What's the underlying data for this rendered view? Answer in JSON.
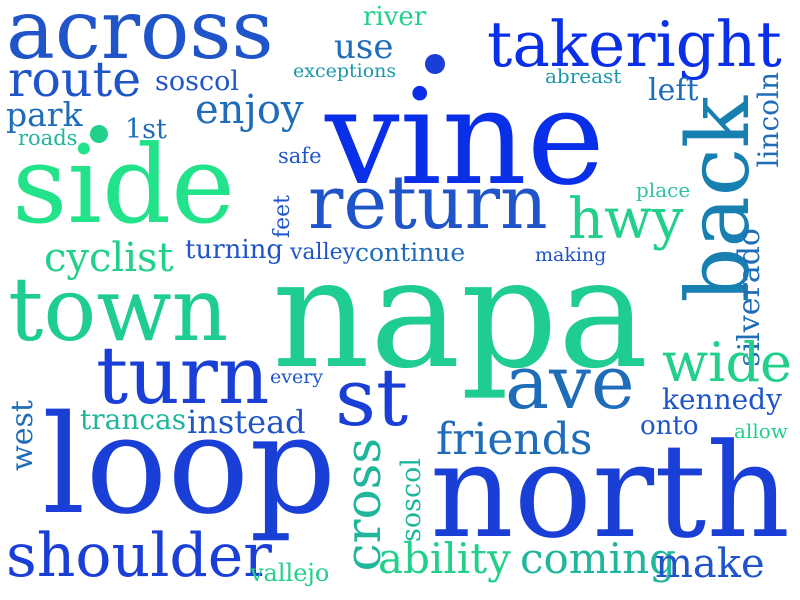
{
  "palette": {
    "royal_blue": "#1a3fd6",
    "bright_blue": "#0a2fe8",
    "medium_blue": "#1f55c9",
    "steel_blue": "#1f6cb8",
    "teal_blue": "#1780b0",
    "teal": "#1a98a8",
    "sea_green": "#1fb69c",
    "mint": "#1fcc92",
    "spring_green": "#22e38a",
    "aqua": "#2ec3a5"
  },
  "words": [
    {
      "key": "across",
      "text": "across",
      "color": "#1f55c9"
    },
    {
      "key": "takeright",
      "text": "takeright",
      "color": "#0a2fe8"
    },
    {
      "key": "river",
      "text": "river",
      "color": "#22d08c"
    },
    {
      "key": "use",
      "text": "use",
      "color": "#1f6cb8"
    },
    {
      "key": "exceptions",
      "text": "exceptions",
      "color": "#1a98a8"
    },
    {
      "key": "route",
      "text": "route",
      "color": "#1f55c9"
    },
    {
      "key": "soscol-top",
      "text": "soscol",
      "color": "#1f55c9"
    },
    {
      "key": "abreast",
      "text": "abreast",
      "color": "#1a98a8"
    },
    {
      "key": "vine",
      "text": "vine",
      "color": "#0a2fe8"
    },
    {
      "key": "park",
      "text": "park",
      "color": "#1f6cb8"
    },
    {
      "key": "enjoy",
      "text": "enjoy",
      "color": "#1f6cb8"
    },
    {
      "key": "left",
      "text": "left",
      "color": "#1f6cb8"
    },
    {
      "key": "lincoln",
      "text": "lincoln",
      "color": "#1f6cb8"
    },
    {
      "key": "roads",
      "text": "roads",
      "color": "#1fb69c"
    },
    {
      "key": "1st",
      "text": "1st",
      "color": "#1f6cb8"
    },
    {
      "key": "back",
      "text": "back",
      "color": "#1780b0"
    },
    {
      "key": "safe",
      "text": "safe",
      "color": "#1f55c9"
    },
    {
      "key": "side",
      "text": "side",
      "color": "#22e38a"
    },
    {
      "key": "return",
      "text": "return",
      "color": "#1f55c9"
    },
    {
      "key": "place",
      "text": "place",
      "color": "#2ec3a5"
    },
    {
      "key": "feet",
      "text": "feet",
      "color": "#1f55c9"
    },
    {
      "key": "hwy",
      "text": "hwy",
      "color": "#22d08c"
    },
    {
      "key": "cyclist",
      "text": "cyclist",
      "color": "#22d08c"
    },
    {
      "key": "turning",
      "text": "turning",
      "color": "#1f55c9"
    },
    {
      "key": "valley",
      "text": "valley",
      "color": "#1f55c9"
    },
    {
      "key": "continue",
      "text": "continue",
      "color": "#1f6cb8"
    },
    {
      "key": "making",
      "text": "making",
      "color": "#1f55c9"
    },
    {
      "key": "silverado",
      "text": "silverado",
      "color": "#1f6cb8"
    },
    {
      "key": "town",
      "text": "town",
      "color": "#1fcc92"
    },
    {
      "key": "napa",
      "text": "napa",
      "color": "#1fcc92"
    },
    {
      "key": "wide",
      "text": "wide",
      "color": "#22d08c"
    },
    {
      "key": "turn",
      "text": "turn",
      "color": "#1a3fd6"
    },
    {
      "key": "every",
      "text": "every",
      "color": "#1f55c9"
    },
    {
      "key": "st",
      "text": "st",
      "color": "#1a3fd6"
    },
    {
      "key": "ave",
      "text": "ave",
      "color": "#1f6cb8"
    },
    {
      "key": "kennedy",
      "text": "kennedy",
      "color": "#1f55c9"
    },
    {
      "key": "west",
      "text": "west",
      "color": "#1f6cb8"
    },
    {
      "key": "trancas",
      "text": "trancas",
      "color": "#1fb69c"
    },
    {
      "key": "instead",
      "text": "instead",
      "color": "#1f55c9"
    },
    {
      "key": "onto",
      "text": "onto",
      "color": "#1f55c9"
    },
    {
      "key": "allow",
      "text": "allow",
      "color": "#22d08c"
    },
    {
      "key": "friends",
      "text": "friends",
      "color": "#1f6cb8"
    },
    {
      "key": "loop",
      "text": "loop",
      "color": "#1a3fd6"
    },
    {
      "key": "cross",
      "text": "cross",
      "color": "#1fb69c"
    },
    {
      "key": "soscol-vertical",
      "text": "soscol",
      "color": "#1fb69c"
    },
    {
      "key": "north",
      "text": "north",
      "color": "#1a3fd6"
    },
    {
      "key": "shoulder",
      "text": "shoulder",
      "color": "#1a3fd6"
    },
    {
      "key": "ability",
      "text": "ability",
      "color": "#22d08c"
    },
    {
      "key": "coming",
      "text": "coming",
      "color": "#1fb69c"
    },
    {
      "key": "make",
      "text": "make",
      "color": "#1f55c9"
    },
    {
      "key": "vallejo",
      "text": "vallejo",
      "color": "#22d08c"
    }
  ]
}
